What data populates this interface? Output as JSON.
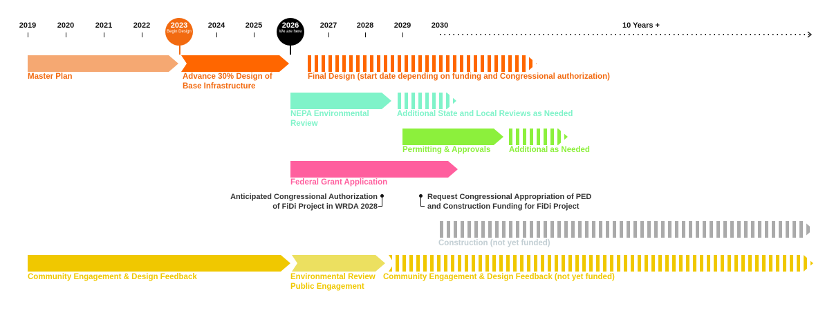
{
  "timeline": {
    "years": [
      "2019",
      "2020",
      "2021",
      "2022",
      "2023",
      "2024",
      "2025",
      "2026",
      "2027",
      "2028",
      "2029",
      "2030"
    ],
    "ten_years_label": "10 Years +",
    "markers": {
      "begin": {
        "year": "2023",
        "text": "Begin Design",
        "color": "#f26a10"
      },
      "now": {
        "year": "2026",
        "text": "We are here",
        "color": "#000000"
      }
    }
  },
  "tracks": {
    "master_plan": {
      "label": "Master Plan",
      "color": "#f5a872"
    },
    "advance": {
      "label": "Advance 30% Design of Base Infrastructure",
      "color": "#ff6600"
    },
    "final_design": {
      "label": "Final Design (start date depending on funding and Congressional authorization)",
      "color": "#ff6600"
    },
    "nepa": {
      "label": "NEPA Environmental Review",
      "color": "#7ff3c9"
    },
    "additional_reviews": {
      "label": "Additional State and Local Reviews as Needed",
      "color": "#7ff3c9"
    },
    "permitting": {
      "label": "Permitting & Approvals",
      "color": "#8cf03c"
    },
    "additional_needed": {
      "label": "Additional as Needed",
      "color": "#8cf03c"
    },
    "federal_grant": {
      "label": "Federal Grant Application",
      "color": "#ff5f9e"
    },
    "construction": {
      "label": "Construction (not yet funded)",
      "color": "#aaaaaa",
      "label_color": "#c2ced3"
    },
    "community": {
      "label": "Community Engagement & Design Feedback",
      "color": "#f0c800"
    },
    "env_public": {
      "label": "Environmental Review Public Engagement",
      "color": "#ece060"
    },
    "community_future": {
      "label": "Community Engagement & Design Feedback (not yet funded)",
      "color": "#f0c800"
    }
  },
  "annotations": {
    "authorization": [
      "Anticipated Congressional Authorization",
      "of FiDi Project in WRDA 2028"
    ],
    "appropriation": [
      "Request Congressional Appropriation of PED",
      "and Construction Funding for FiDi Project"
    ]
  }
}
